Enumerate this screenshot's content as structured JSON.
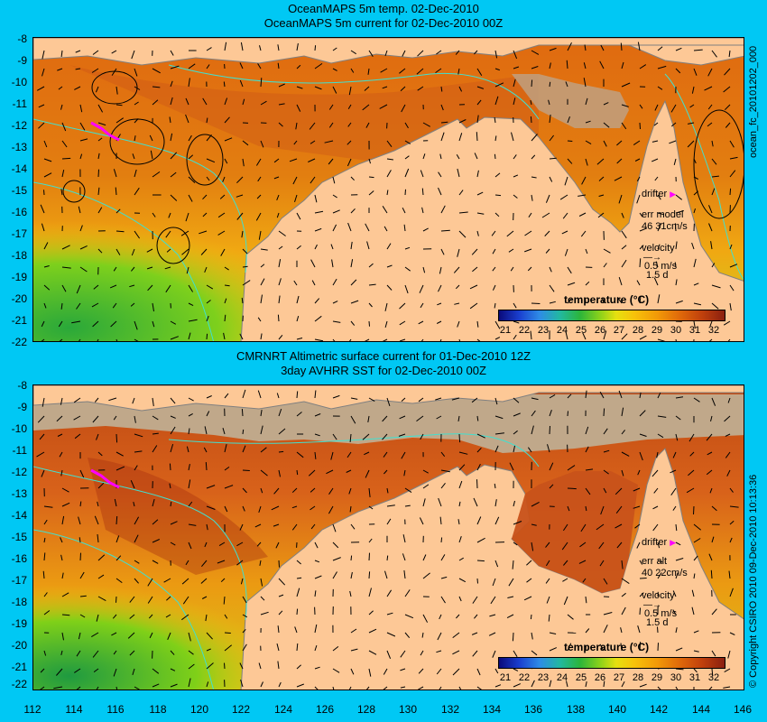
{
  "top": {
    "title1": "OceanMAPS 5m temp. 02-Dec-2010",
    "title2": "OceanMAPS 5m current for 02-Dec-2010 00Z",
    "legend_drifter": "drifter",
    "legend_err": "err model",
    "legend_err_values": "46 31cm/s",
    "legend_velocity": "velocity",
    "legend_speed": "0.5 m/s",
    "legend_days": "1.5 d",
    "side_label": "ocean_fc_20101202_000"
  },
  "bottom": {
    "title1": "CMRNRT Altimetric surface current for 01-Dec-2010 12Z",
    "title2": "3day AVHRR SST for 02-Dec-2010 00Z",
    "legend_drifter": "drifter",
    "legend_err": "err alt",
    "legend_err_values": "40 22cm/s",
    "legend_velocity": "velocity",
    "legend_speed": "0.5 m/s",
    "legend_days": "1.5 d",
    "side_label": "© Copyright CSIRO 2010   09-Dec-2010 10:13:36"
  },
  "colorbar": {
    "title": "temperature (°C)",
    "ticks": [
      "21",
      "22",
      "23",
      "24",
      "25",
      "26",
      "27",
      "28",
      "29",
      "30",
      "31",
      "32"
    ]
  },
  "lat_labels": [
    "-8",
    "-9",
    "-10",
    "-11",
    "-12",
    "-13",
    "-14",
    "-15",
    "-16",
    "-17",
    "-18",
    "-19",
    "-20",
    "-21",
    "-22"
  ],
  "lon_labels": [
    "112",
    "114",
    "116",
    "118",
    "120",
    "122",
    "124",
    "126",
    "128",
    "130",
    "132",
    "134",
    "136",
    "138",
    "140",
    "142",
    "144",
    "146"
  ],
  "colors": {
    "background": "#00c8f4",
    "land": "#fdc896",
    "drifter": "#ff00ff",
    "bathymetry": "#40e0d0"
  }
}
